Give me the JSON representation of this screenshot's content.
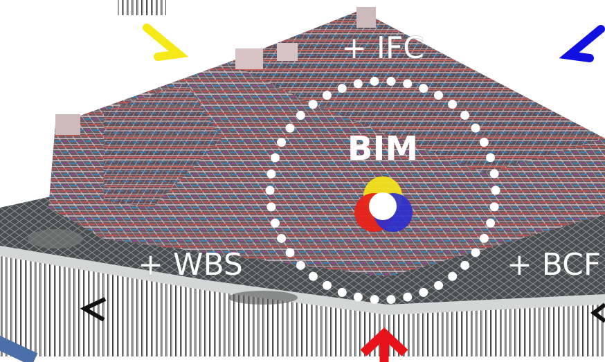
{
  "labels": {
    "top": "+ IFC",
    "center": "BIM",
    "left": "+ WBS",
    "right": "+ BCF"
  }
}
